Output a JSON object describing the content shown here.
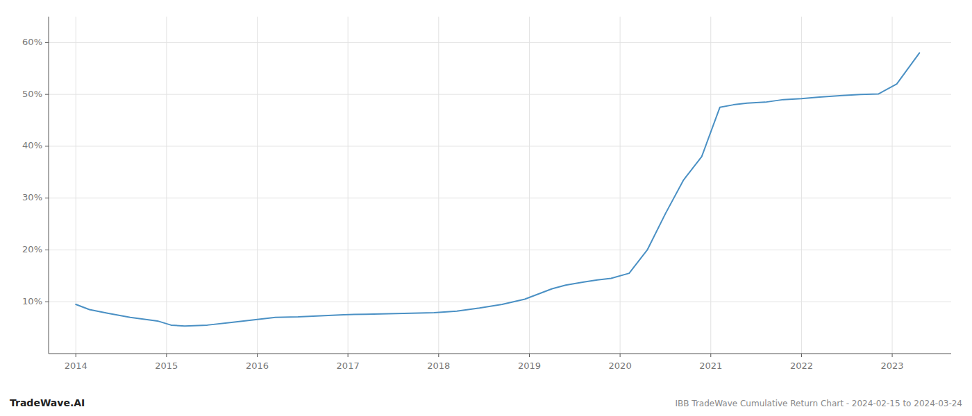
{
  "chart_data": {
    "type": "line",
    "title": "IBB TradeWave Cumulative Return Chart - 2024-02-15 to 2024-03-24",
    "annotations": [
      "TradeWave.AI"
    ],
    "x": [
      2014.0,
      2014.15,
      2014.35,
      2014.6,
      2014.9,
      2015.05,
      2015.2,
      2015.45,
      2015.7,
      2015.95,
      2016.2,
      2016.45,
      2016.7,
      2016.95,
      2017.2,
      2017.45,
      2017.7,
      2017.95,
      2018.2,
      2018.45,
      2018.7,
      2018.95,
      2019.1,
      2019.25,
      2019.4,
      2019.6,
      2019.75,
      2019.9,
      2020.1,
      2020.3,
      2020.5,
      2020.7,
      2020.9,
      2021.1,
      2021.25,
      2021.4,
      2021.6,
      2021.8,
      2022.0,
      2022.2,
      2022.45,
      2022.65,
      2022.85,
      2023.05,
      2023.3
    ],
    "values": [
      9.5,
      8.5,
      7.8,
      7.0,
      6.3,
      5.5,
      5.3,
      5.5,
      6.0,
      6.5,
      7.0,
      7.1,
      7.3,
      7.5,
      7.6,
      7.7,
      7.8,
      7.9,
      8.2,
      8.8,
      9.5,
      10.5,
      11.5,
      12.5,
      13.2,
      13.8,
      14.2,
      14.5,
      15.5,
      20.0,
      27.0,
      33.5,
      38.0,
      47.5,
      48.0,
      48.3,
      48.5,
      49.0,
      49.2,
      49.5,
      49.8,
      50.0,
      50.1,
      52.0,
      58.0
    ],
    "color": "#4a90c4",
    "xlim": [
      2013.7,
      2023.65
    ],
    "ylim": [
      0,
      65
    ],
    "xticks": [
      2014,
      2015,
      2016,
      2017,
      2018,
      2019,
      2020,
      2021,
      2022,
      2023
    ],
    "yticks": [
      {
        "value": 10,
        "label": "10%"
      },
      {
        "value": 20,
        "label": "20%"
      },
      {
        "value": 30,
        "label": "30%"
      },
      {
        "value": 40,
        "label": "40%"
      },
      {
        "value": 50,
        "label": "50%"
      },
      {
        "value": 60,
        "label": "60%"
      }
    ],
    "grid": true
  }
}
